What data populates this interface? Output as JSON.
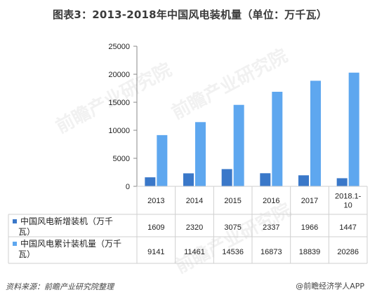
{
  "title": "图表3：2013-2018年中国风电装机量（单位：万千瓦）",
  "source": "资料来源：前瞻产业研究院整理",
  "brand": "@前瞻经济学人APP",
  "watermarks": [
    "前瞻产业研究院",
    "前瞻产业研究院",
    "前瞻产业研究院"
  ],
  "colors": {
    "new": "#3a78c9",
    "cumulative": "#5ea7ef",
    "grid": "#cfcfcf"
  },
  "chart_data": {
    "type": "bar",
    "title": "图表3：2013-2018年中国风电装机量（单位：万千瓦）",
    "categories": [
      "2013",
      "2014",
      "2015",
      "2016",
      "2017",
      "2018.1-10"
    ],
    "category_lines": [
      [
        "2013"
      ],
      [
        "2014"
      ],
      [
        "2015"
      ],
      [
        "2016"
      ],
      [
        "2017"
      ],
      [
        "2018.1-",
        "10"
      ]
    ],
    "series": [
      {
        "name": "中国风电新增装机（万千瓦）",
        "name_lines": [
          "中国风电新增装机（万千",
          "瓦）"
        ],
        "values": [
          1609,
          2320,
          3075,
          2337,
          1966,
          1447
        ]
      },
      {
        "name": "中国风电累计装机量（万千瓦）",
        "name_lines": [
          "中国风电累计装机量（万千",
          "瓦）"
        ],
        "values": [
          9141,
          11461,
          14536,
          16873,
          18839,
          20286
        ]
      }
    ],
    "yticks": [
      0,
      5000,
      10000,
      15000,
      20000,
      25000
    ],
    "ylim": [
      0,
      25000
    ],
    "legend": "data-table",
    "grid": false
  }
}
